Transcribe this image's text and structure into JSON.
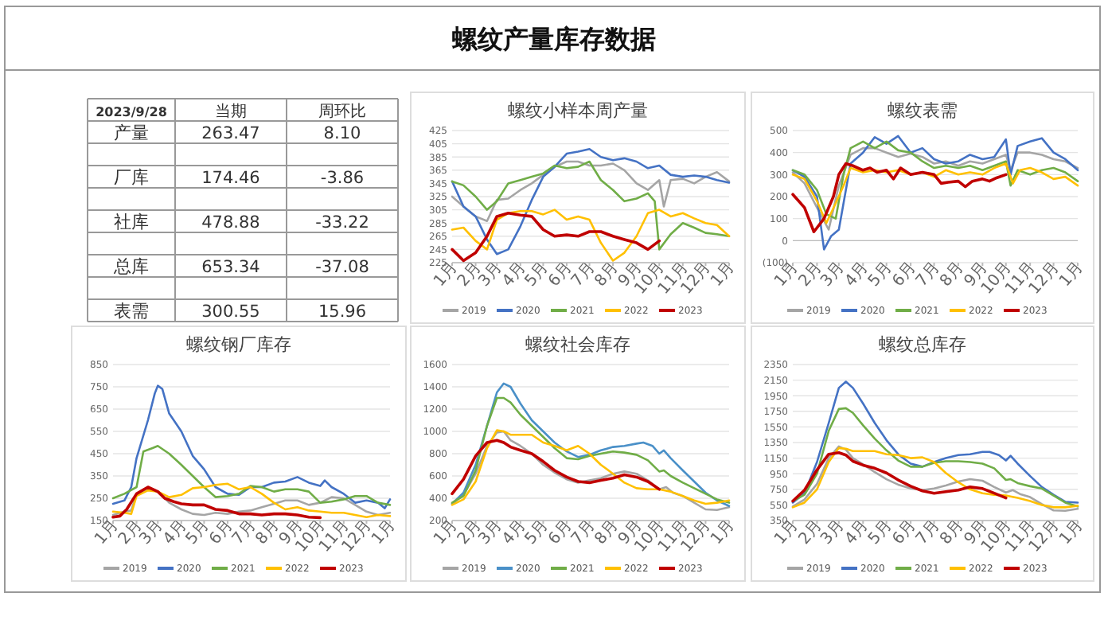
{
  "chart_data": [
    {
      "type": "other",
      "title": "螺纹产量库存数据",
      "subtitle": "2023/9/28",
      "categories": [
        "产量",
        "厂库",
        "社库",
        "总库",
        "表需"
      ],
      "series": [
        {
          "name": "当期",
          "values": [
            263.47,
            174.46,
            478.88,
            653.34,
            300.55
          ],
          "value_labels": [
            "263.47",
            "174.46",
            "478.88",
            "653.34",
            "300.55"
          ]
        },
        {
          "name": "周环比",
          "values": [
            8.1,
            -3.86,
            -33.22,
            -37.08,
            15.96
          ],
          "value_labels": [
            "8.10",
            "-3.86",
            "-33.22",
            "-37.08",
            "15.96"
          ]
        }
      ]
    },
    {
      "type": "line",
      "title": "螺纹小样本周产量",
      "xlim": [
        "2023-01-01",
        "2024-01-01"
      ],
      "xticks": [
        {
          "value": "2023-01-01",
          "label": "1月"
        },
        {
          "value": "2023-02-01",
          "label": "2月"
        },
        {
          "value": "2023-03-01",
          "label": "3月"
        },
        {
          "value": "2023-04-01",
          "label": "4月"
        },
        {
          "value": "2023-05-01",
          "label": "5月"
        },
        {
          "value": "2023-06-01",
          "label": "6月"
        },
        {
          "value": "2023-07-01",
          "label": "7月"
        },
        {
          "value": "2023-08-01",
          "label": "8月"
        },
        {
          "value": "2023-09-01",
          "label": "9月"
        },
        {
          "value": "2023-10-01",
          "label": "10月"
        },
        {
          "value": "2023-11-01",
          "label": "11月"
        },
        {
          "value": "2023-12-01",
          "label": "12月"
        },
        {
          "value": "2024-01-01",
          "label": "1月"
        }
      ],
      "ylim": [
        225,
        425
      ],
      "yticks": [
        225,
        245,
        265,
        285,
        305,
        325,
        345,
        365,
        385,
        405,
        425
      ],
      "grid": "y",
      "legend": "bottom",
      "series": [
        {
          "name": "2019",
          "color": "#a5a5a5",
          "x": [
            "2023-01-01",
            "2023-01-16",
            "2023-02-01",
            "2023-02-16",
            "2023-03-01",
            "2023-03-16",
            "2023-04-01",
            "2023-04-16",
            "2023-05-01",
            "2023-05-16",
            "2023-06-01",
            "2023-06-16",
            "2023-07-01",
            "2023-07-16",
            "2023-08-01",
            "2023-08-16",
            "2023-09-01",
            "2023-09-16",
            "2023-10-01",
            "2023-10-07",
            "2023-10-16",
            "2023-11-01",
            "2023-11-16",
            "2023-12-01",
            "2023-12-16",
            "2024-01-01"
          ],
          "values": [
            325,
            310,
            295,
            288,
            320,
            322,
            335,
            345,
            358,
            370,
            378,
            378,
            372,
            372,
            375,
            365,
            345,
            335,
            350,
            310,
            350,
            352,
            345,
            355,
            362,
            348
          ]
        },
        {
          "name": "2020",
          "color": "#4472c4",
          "x": [
            "2023-01-01",
            "2023-01-16",
            "2023-02-01",
            "2023-02-16",
            "2023-03-01",
            "2023-03-16",
            "2023-04-01",
            "2023-04-16",
            "2023-05-01",
            "2023-05-16",
            "2023-06-01",
            "2023-06-16",
            "2023-07-01",
            "2023-07-16",
            "2023-08-01",
            "2023-08-16",
            "2023-09-01",
            "2023-09-16",
            "2023-10-01",
            "2023-10-16",
            "2023-11-01",
            "2023-11-16",
            "2023-12-01",
            "2023-12-16",
            "2024-01-01"
          ],
          "values": [
            348,
            310,
            295,
            260,
            238,
            245,
            280,
            320,
            355,
            370,
            390,
            393,
            397,
            385,
            380,
            383,
            378,
            368,
            372,
            358,
            355,
            357,
            355,
            350,
            346
          ]
        },
        {
          "name": "2021",
          "color": "#70ad47",
          "x": [
            "2023-01-01",
            "2023-01-16",
            "2023-02-01",
            "2023-02-16",
            "2023-03-01",
            "2023-03-16",
            "2023-04-01",
            "2023-04-16",
            "2023-05-01",
            "2023-05-16",
            "2023-06-01",
            "2023-06-16",
            "2023-07-01",
            "2023-07-16",
            "2023-08-01",
            "2023-08-16",
            "2023-09-01",
            "2023-09-16",
            "2023-09-25",
            "2023-10-01",
            "2023-10-16",
            "2023-11-01",
            "2023-11-16",
            "2023-12-01",
            "2023-12-16",
            "2024-01-01"
          ],
          "values": [
            348,
            342,
            325,
            305,
            318,
            345,
            350,
            355,
            360,
            372,
            368,
            370,
            378,
            350,
            335,
            318,
            322,
            330,
            318,
            245,
            268,
            285,
            278,
            270,
            268,
            265
          ]
        },
        {
          "name": "2022",
          "color": "#ffc000",
          "x": [
            "2023-01-01",
            "2023-01-16",
            "2023-02-01",
            "2023-02-16",
            "2023-03-01",
            "2023-03-16",
            "2023-04-01",
            "2023-04-16",
            "2023-05-01",
            "2023-05-16",
            "2023-06-01",
            "2023-06-16",
            "2023-07-01",
            "2023-07-16",
            "2023-08-01",
            "2023-08-16",
            "2023-09-01",
            "2023-09-16",
            "2023-10-01",
            "2023-10-16",
            "2023-11-01",
            "2023-11-16",
            "2023-12-01",
            "2023-12-16",
            "2024-01-01"
          ],
          "values": [
            275,
            278,
            258,
            245,
            290,
            300,
            303,
            303,
            298,
            305,
            290,
            295,
            290,
            255,
            228,
            240,
            265,
            300,
            305,
            295,
            300,
            292,
            285,
            282,
            265
          ]
        },
        {
          "name": "2023",
          "color": "#c00000",
          "x": [
            "2023-01-01",
            "2023-01-16",
            "2023-02-01",
            "2023-02-16",
            "2023-03-01",
            "2023-03-16",
            "2023-04-01",
            "2023-04-16",
            "2023-05-01",
            "2023-05-16",
            "2023-06-01",
            "2023-06-16",
            "2023-07-01",
            "2023-07-16",
            "2023-08-01",
            "2023-08-16",
            "2023-09-01",
            "2023-09-16",
            "2023-10-01"
          ],
          "values": [
            245,
            228,
            240,
            265,
            295,
            300,
            297,
            295,
            275,
            265,
            267,
            265,
            272,
            272,
            265,
            260,
            255,
            245,
            258
          ]
        }
      ]
    },
    {
      "type": "line",
      "title": "螺纹表需",
      "xlim": [
        "2023-01-01",
        "2024-01-01"
      ],
      "xticks": [
        {
          "value": "2023-01-01",
          "label": "1月"
        },
        {
          "value": "2023-02-01",
          "label": "2月"
        },
        {
          "value": "2023-03-01",
          "label": "3月"
        },
        {
          "value": "2023-04-01",
          "label": "4月"
        },
        {
          "value": "2023-05-01",
          "label": "5月"
        },
        {
          "value": "2023-06-01",
          "label": "6月"
        },
        {
          "value": "2023-07-01",
          "label": "7月"
        },
        {
          "value": "2023-08-01",
          "label": "8月"
        },
        {
          "value": "2023-09-01",
          "label": "9月"
        },
        {
          "value": "2023-10-01",
          "label": "10月"
        },
        {
          "value": "2023-11-01",
          "label": "11月"
        },
        {
          "value": "2023-12-01",
          "label": "12月"
        },
        {
          "value": "2024-01-01",
          "label": "1月"
        }
      ],
      "ylim": [
        -100,
        500
      ],
      "yticks": [
        {
          "value": -100,
          "label": "(100)"
        },
        0,
        100,
        200,
        300,
        400,
        500
      ],
      "grid": "y",
      "legend": "bottom",
      "series": [
        {
          "name": "2019",
          "color": "#a5a5a5",
          "x": [
            "2023-01-01",
            "2023-01-16",
            "2023-02-01",
            "2023-02-16",
            "2023-03-01",
            "2023-03-16",
            "2023-04-01",
            "2023-04-16",
            "2023-05-01",
            "2023-05-16",
            "2023-06-01",
            "2023-06-16",
            "2023-07-01",
            "2023-07-16",
            "2023-08-01",
            "2023-08-16",
            "2023-09-01",
            "2023-09-16",
            "2023-10-01",
            "2023-10-07",
            "2023-10-16",
            "2023-11-01",
            "2023-11-16",
            "2023-12-01",
            "2023-12-16",
            "2024-01-01"
          ],
          "values": [
            310,
            260,
            150,
            50,
            250,
            390,
            420,
            420,
            400,
            380,
            395,
            380,
            350,
            360,
            340,
            360,
            350,
            370,
            390,
            320,
            400,
            400,
            390,
            370,
            360,
            330
          ]
        },
        {
          "name": "2020",
          "color": "#4472c4",
          "x": [
            "2023-01-01",
            "2023-01-16",
            "2023-02-01",
            "2023-02-10",
            "2023-02-19",
            "2023-03-01",
            "2023-03-16",
            "2023-04-01",
            "2023-04-16",
            "2023-05-01",
            "2023-05-16",
            "2023-06-01",
            "2023-06-16",
            "2023-07-01",
            "2023-07-16",
            "2023-08-01",
            "2023-08-16",
            "2023-09-01",
            "2023-09-16",
            "2023-10-01",
            "2023-10-07",
            "2023-10-16",
            "2023-11-01",
            "2023-11-16",
            "2023-12-01",
            "2023-12-16",
            "2024-01-01"
          ],
          "values": [
            320,
            290,
            200,
            -40,
            20,
            50,
            350,
            400,
            470,
            440,
            475,
            400,
            420,
            370,
            350,
            360,
            390,
            370,
            380,
            460,
            300,
            430,
            450,
            465,
            400,
            370,
            320
          ]
        },
        {
          "name": "2021",
          "color": "#70ad47",
          "x": [
            "2023-01-01",
            "2023-01-16",
            "2023-02-01",
            "2023-02-13",
            "2023-02-25",
            "2023-03-07",
            "2023-03-16",
            "2023-04-01",
            "2023-04-16",
            "2023-05-01",
            "2023-05-16",
            "2023-06-01",
            "2023-06-16",
            "2023-07-01",
            "2023-07-16",
            "2023-08-01",
            "2023-08-16",
            "2023-09-01",
            "2023-09-16",
            "2023-10-01",
            "2023-10-07",
            "2023-10-16",
            "2023-11-01",
            "2023-11-16",
            "2023-12-01",
            "2023-12-16",
            "2024-01-01"
          ],
          "values": [
            320,
            300,
            230,
            120,
            100,
            300,
            420,
            450,
            420,
            450,
            410,
            400,
            360,
            330,
            340,
            330,
            340,
            320,
            340,
            360,
            250,
            320,
            300,
            320,
            330,
            310,
            270
          ]
        },
        {
          "name": "2022",
          "color": "#ffc000",
          "x": [
            "2023-01-01",
            "2023-01-16",
            "2023-02-01",
            "2023-02-13",
            "2023-02-25",
            "2023-03-07",
            "2023-03-16",
            "2023-04-01",
            "2023-04-16",
            "2023-05-01",
            "2023-05-16",
            "2023-06-01",
            "2023-06-16",
            "2023-07-01",
            "2023-07-16",
            "2023-08-01",
            "2023-08-16",
            "2023-09-01",
            "2023-09-16",
            "2023-10-01",
            "2023-10-10",
            "2023-10-19",
            "2023-11-01",
            "2023-11-16",
            "2023-12-01",
            "2023-12-16",
            "2024-01-01"
          ],
          "values": [
            300,
            280,
            180,
            80,
            170,
            250,
            330,
            310,
            320,
            310,
            320,
            300,
            310,
            290,
            320,
            300,
            310,
            300,
            330,
            350,
            260,
            320,
            330,
            310,
            280,
            290,
            250
          ]
        },
        {
          "name": "2023",
          "color": "#c00000",
          "x": [
            "2023-01-01",
            "2023-01-16",
            "2023-01-28",
            "2023-02-10",
            "2023-02-22",
            "2023-03-01",
            "2023-03-10",
            "2023-03-19",
            "2023-04-01",
            "2023-04-10",
            "2023-04-19",
            "2023-05-01",
            "2023-05-10",
            "2023-05-19",
            "2023-06-01",
            "2023-06-16",
            "2023-07-01",
            "2023-07-10",
            "2023-07-19",
            "2023-08-01",
            "2023-08-10",
            "2023-08-19",
            "2023-09-01",
            "2023-09-10",
            "2023-09-19",
            "2023-10-01"
          ],
          "values": [
            210,
            150,
            40,
            100,
            200,
            300,
            350,
            340,
            320,
            330,
            310,
            320,
            280,
            330,
            300,
            310,
            300,
            260,
            265,
            270,
            245,
            270,
            280,
            270,
            285,
            300
          ]
        }
      ]
    },
    {
      "type": "line",
      "title": "螺纹钢厂库存",
      "xlim": [
        "2023-01-01",
        "2024-01-01"
      ],
      "xticks": [
        {
          "value": "2023-01-01",
          "label": "1月"
        },
        {
          "value": "2023-02-01",
          "label": "2月"
        },
        {
          "value": "2023-03-01",
          "label": "3月"
        },
        {
          "value": "2023-04-01",
          "label": "4月"
        },
        {
          "value": "2023-05-01",
          "label": "5月"
        },
        {
          "value": "2023-06-01",
          "label": "6月"
        },
        {
          "value": "2023-07-01",
          "label": "7月"
        },
        {
          "value": "2023-08-01",
          "label": "8月"
        },
        {
          "value": "2023-09-01",
          "label": "9月"
        },
        {
          "value": "2023-10-01",
          "label": "10月"
        },
        {
          "value": "2023-11-01",
          "label": "11月"
        },
        {
          "value": "2023-12-01",
          "label": "12月"
        },
        {
          "value": "2024-01-01",
          "label": "1月"
        }
      ],
      "ylim": [
        150,
        850
      ],
      "yticks": [
        150,
        250,
        350,
        450,
        550,
        650,
        750,
        850
      ],
      "grid": "y",
      "legend": "bottom",
      "series": [
        {
          "name": "2019",
          "color": "#a5a5a5",
          "x": [
            "2023-01-01",
            "2023-01-16",
            "2023-01-25",
            "2023-02-01",
            "2023-02-16",
            "2023-03-01",
            "2023-03-16",
            "2023-04-01",
            "2023-04-16",
            "2023-05-01",
            "2023-05-16",
            "2023-06-01",
            "2023-06-16",
            "2023-07-01",
            "2023-07-16",
            "2023-08-01",
            "2023-08-16",
            "2023-09-01",
            "2023-09-16",
            "2023-10-01",
            "2023-10-16",
            "2023-11-01",
            "2023-11-16",
            "2023-12-01",
            "2023-12-16",
            "2024-01-01"
          ],
          "values": [
            175,
            190,
            195,
            270,
            290,
            280,
            230,
            200,
            180,
            175,
            185,
            180,
            190,
            195,
            210,
            225,
            240,
            240,
            220,
            230,
            255,
            250,
            220,
            190,
            175,
            185
          ]
        },
        {
          "name": "2020",
          "color": "#4472c4",
          "x": [
            "2023-01-01",
            "2023-01-16",
            "2023-01-25",
            "2023-02-01",
            "2023-02-16",
            "2023-02-25",
            "2023-03-01",
            "2023-03-07",
            "2023-03-16",
            "2023-04-01",
            "2023-04-16",
            "2023-05-01",
            "2023-05-16",
            "2023-06-01",
            "2023-06-16",
            "2023-07-01",
            "2023-07-16",
            "2023-08-01",
            "2023-08-16",
            "2023-09-01",
            "2023-09-16",
            "2023-10-01",
            "2023-10-07",
            "2023-10-16",
            "2023-11-01",
            "2023-11-16",
            "2023-12-01",
            "2023-12-16",
            "2023-12-25",
            "2024-01-01"
          ],
          "values": [
            225,
            240,
            300,
            430,
            600,
            720,
            755,
            740,
            630,
            550,
            440,
            380,
            300,
            270,
            265,
            300,
            300,
            320,
            325,
            345,
            320,
            305,
            330,
            300,
            270,
            230,
            240,
            230,
            205,
            245
          ]
        },
        {
          "name": "2021",
          "color": "#70ad47",
          "x": [
            "2023-01-01",
            "2023-01-16",
            "2023-02-01",
            "2023-02-10",
            "2023-02-22",
            "2023-03-01",
            "2023-03-16",
            "2023-04-01",
            "2023-04-16",
            "2023-05-01",
            "2023-05-16",
            "2023-06-01",
            "2023-06-16",
            "2023-07-01",
            "2023-07-16",
            "2023-08-01",
            "2023-08-16",
            "2023-09-01",
            "2023-09-16",
            "2023-10-01",
            "2023-10-16",
            "2023-11-01",
            "2023-11-16",
            "2023-12-01",
            "2023-12-16",
            "2024-01-01"
          ],
          "values": [
            250,
            270,
            300,
            460,
            475,
            485,
            450,
            400,
            350,
            300,
            255,
            260,
            270,
            305,
            300,
            280,
            290,
            290,
            280,
            230,
            235,
            245,
            260,
            260,
            230,
            220
          ]
        },
        {
          "name": "2022",
          "color": "#ffc000",
          "x": [
            "2023-01-01",
            "2023-01-16",
            "2023-01-25",
            "2023-02-01",
            "2023-02-16",
            "2023-03-01",
            "2023-03-16",
            "2023-04-01",
            "2023-04-16",
            "2023-05-01",
            "2023-05-16",
            "2023-06-01",
            "2023-06-16",
            "2023-07-01",
            "2023-07-16",
            "2023-08-01",
            "2023-08-16",
            "2023-09-01",
            "2023-09-16",
            "2023-10-01",
            "2023-10-16",
            "2023-11-01",
            "2023-11-16",
            "2023-12-01",
            "2023-12-16",
            "2024-01-01"
          ],
          "values": [
            190,
            185,
            180,
            260,
            285,
            280,
            255,
            265,
            295,
            300,
            310,
            315,
            290,
            300,
            270,
            230,
            200,
            210,
            195,
            190,
            185,
            185,
            175,
            165,
            175,
            170
          ]
        },
        {
          "name": "2023",
          "color": "#c00000",
          "x": [
            "2023-01-01",
            "2023-01-10",
            "2023-01-19",
            "2023-02-01",
            "2023-02-16",
            "2023-03-01",
            "2023-03-10",
            "2023-03-22",
            "2023-04-01",
            "2023-04-16",
            "2023-05-01",
            "2023-05-16",
            "2023-06-01",
            "2023-06-16",
            "2023-07-01",
            "2023-07-16",
            "2023-08-01",
            "2023-08-16",
            "2023-09-01",
            "2023-09-16",
            "2023-10-01"
          ],
          "values": [
            165,
            170,
            200,
            270,
            300,
            280,
            250,
            235,
            225,
            220,
            220,
            200,
            195,
            180,
            180,
            175,
            180,
            180,
            175,
            165,
            163
          ]
        }
      ]
    },
    {
      "type": "line",
      "title": "螺纹社会库存",
      "xlim": [
        "2023-01-01",
        "2024-01-01"
      ],
      "xticks": [
        {
          "value": "2023-01-01",
          "label": "1月"
        },
        {
          "value": "2023-02-01",
          "label": "2月"
        },
        {
          "value": "2023-03-01",
          "label": "3月"
        },
        {
          "value": "2023-04-01",
          "label": "4月"
        },
        {
          "value": "2023-05-01",
          "label": "5月"
        },
        {
          "value": "2023-06-01",
          "label": "6月"
        },
        {
          "value": "2023-07-01",
          "label": "7月"
        },
        {
          "value": "2023-08-01",
          "label": "8月"
        },
        {
          "value": "2023-09-01",
          "label": "9月"
        },
        {
          "value": "2023-10-01",
          "label": "10月"
        },
        {
          "value": "2023-11-01",
          "label": "11月"
        },
        {
          "value": "2023-12-01",
          "label": "12月"
        },
        {
          "value": "2024-01-01",
          "label": "1月"
        }
      ],
      "ylim": [
        200,
        1600
      ],
      "yticks": [
        200,
        400,
        600,
        800,
        1000,
        1200,
        1400,
        1600
      ],
      "grid": "y",
      "legend": "bottom",
      "series": [
        {
          "name": "2019",
          "color": "#a5a5a5",
          "x": [
            "2023-01-01",
            "2023-01-16",
            "2023-02-01",
            "2023-02-16",
            "2023-03-01",
            "2023-03-10",
            "2023-03-19",
            "2023-04-01",
            "2023-04-16",
            "2023-05-01",
            "2023-05-16",
            "2023-06-01",
            "2023-06-16",
            "2023-07-01",
            "2023-07-16",
            "2023-08-01",
            "2023-08-16",
            "2023-09-01",
            "2023-09-16",
            "2023-10-01",
            "2023-10-10",
            "2023-10-19",
            "2023-11-01",
            "2023-11-16",
            "2023-12-01",
            "2023-12-16",
            "2024-01-01"
          ],
          "values": [
            350,
            430,
            620,
            870,
            990,
            1000,
            920,
            870,
            800,
            700,
            630,
            570,
            540,
            560,
            580,
            620,
            640,
            620,
            560,
            480,
            500,
            450,
            420,
            360,
            300,
            295,
            320
          ]
        },
        {
          "name": "2020",
          "color": "#4a90c8",
          "x": [
            "2023-01-01",
            "2023-01-16",
            "2023-02-01",
            "2023-02-16",
            "2023-03-01",
            "2023-03-10",
            "2023-03-19",
            "2023-04-01",
            "2023-04-16",
            "2023-05-01",
            "2023-05-16",
            "2023-06-01",
            "2023-06-16",
            "2023-07-01",
            "2023-07-16",
            "2023-08-01",
            "2023-08-16",
            "2023-09-01",
            "2023-09-10",
            "2023-09-22",
            "2023-10-01",
            "2023-10-07",
            "2023-10-16",
            "2023-11-01",
            "2023-11-16",
            "2023-12-01",
            "2023-12-16",
            "2024-01-01"
          ],
          "values": [
            350,
            450,
            700,
            1050,
            1350,
            1430,
            1400,
            1250,
            1100,
            1000,
            900,
            820,
            770,
            790,
            830,
            860,
            870,
            890,
            900,
            870,
            800,
            830,
            760,
            650,
            550,
            450,
            380,
            330
          ]
        },
        {
          "name": "2021",
          "color": "#70ad47",
          "x": [
            "2023-01-01",
            "2023-01-16",
            "2023-02-01",
            "2023-02-16",
            "2023-03-01",
            "2023-03-10",
            "2023-03-19",
            "2023-04-01",
            "2023-04-16",
            "2023-05-01",
            "2023-05-16",
            "2023-06-01",
            "2023-06-16",
            "2023-07-01",
            "2023-07-16",
            "2023-08-01",
            "2023-08-16",
            "2023-09-01",
            "2023-09-16",
            "2023-10-01",
            "2023-10-07",
            "2023-10-16",
            "2023-11-01",
            "2023-11-16",
            "2023-12-01",
            "2023-12-16",
            "2024-01-01"
          ],
          "values": [
            360,
            420,
            650,
            1050,
            1300,
            1300,
            1260,
            1150,
            1050,
            950,
            850,
            760,
            750,
            780,
            800,
            820,
            810,
            790,
            740,
            640,
            650,
            600,
            540,
            490,
            440,
            390,
            360
          ]
        },
        {
          "name": "2022",
          "color": "#ffc000",
          "x": [
            "2023-01-01",
            "2023-01-16",
            "2023-02-01",
            "2023-02-16",
            "2023-03-01",
            "2023-03-10",
            "2023-03-19",
            "2023-04-01",
            "2023-04-16",
            "2023-05-01",
            "2023-05-16",
            "2023-06-01",
            "2023-06-16",
            "2023-07-01",
            "2023-07-16",
            "2023-08-01",
            "2023-08-16",
            "2023-09-01",
            "2023-09-16",
            "2023-10-01",
            "2023-10-16",
            "2023-11-01",
            "2023-11-16",
            "2023-12-01",
            "2023-12-16",
            "2024-01-01"
          ],
          "values": [
            340,
            390,
            550,
            850,
            1010,
            1000,
            970,
            970,
            970,
            900,
            870,
            830,
            870,
            800,
            700,
            620,
            540,
            490,
            480,
            480,
            460,
            420,
            380,
            350,
            360,
            380
          ]
        },
        {
          "name": "2023",
          "color": "#c00000",
          "x": [
            "2023-01-01",
            "2023-01-16",
            "2023-02-01",
            "2023-02-16",
            "2023-03-01",
            "2023-03-10",
            "2023-03-19",
            "2023-04-01",
            "2023-04-16",
            "2023-05-01",
            "2023-05-16",
            "2023-06-01",
            "2023-06-16",
            "2023-07-01",
            "2023-07-16",
            "2023-08-01",
            "2023-08-16",
            "2023-09-01",
            "2023-09-16",
            "2023-10-01"
          ],
          "values": [
            440,
            570,
            780,
            900,
            920,
            900,
            860,
            830,
            800,
            730,
            650,
            590,
            550,
            540,
            560,
            580,
            610,
            590,
            550,
            480
          ]
        }
      ]
    },
    {
      "type": "line",
      "title": "螺纹总库存",
      "xlim": [
        "2023-01-01",
        "2024-01-01"
      ],
      "xticks": [
        {
          "value": "2023-01-01",
          "label": "1月"
        },
        {
          "value": "2023-02-01",
          "label": "2月"
        },
        {
          "value": "2023-03-01",
          "label": "3月"
        },
        {
          "value": "2023-04-01",
          "label": "4月"
        },
        {
          "value": "2023-05-01",
          "label": "5月"
        },
        {
          "value": "2023-06-01",
          "label": "6月"
        },
        {
          "value": "2023-07-01",
          "label": "7月"
        },
        {
          "value": "2023-08-01",
          "label": "8月"
        },
        {
          "value": "2023-09-01",
          "label": "9月"
        },
        {
          "value": "2023-10-01",
          "label": "10月"
        },
        {
          "value": "2023-11-01",
          "label": "11月"
        },
        {
          "value": "2023-12-01",
          "label": "12月"
        },
        {
          "value": "2024-01-01",
          "label": "1月"
        }
      ],
      "ylim": [
        350,
        2350
      ],
      "yticks": [
        350,
        550,
        750,
        950,
        1150,
        1350,
        1550,
        1750,
        1950,
        2150,
        2350
      ],
      "grid": "y",
      "legend": "bottom",
      "series": [
        {
          "name": "2019",
          "color": "#a5a5a5",
          "x": [
            "2023-01-01",
            "2023-01-16",
            "2023-02-01",
            "2023-02-16",
            "2023-03-01",
            "2023-03-10",
            "2023-03-19",
            "2023-04-01",
            "2023-04-16",
            "2023-05-01",
            "2023-05-16",
            "2023-06-01",
            "2023-06-16",
            "2023-07-01",
            "2023-07-16",
            "2023-08-01",
            "2023-08-16",
            "2023-09-01",
            "2023-09-16",
            "2023-10-01",
            "2023-10-10",
            "2023-10-19",
            "2023-11-01",
            "2023-11-16",
            "2023-12-01",
            "2023-12-16",
            "2024-01-01"
          ],
          "values": [
            530,
            620,
            820,
            1150,
            1300,
            1260,
            1150,
            1070,
            970,
            880,
            810,
            760,
            740,
            760,
            800,
            850,
            880,
            860,
            780,
            710,
            740,
            690,
            650,
            560,
            480,
            475,
            500
          ]
        },
        {
          "name": "2020",
          "color": "#4472c4",
          "x": [
            "2023-01-01",
            "2023-01-16",
            "2023-02-01",
            "2023-02-16",
            "2023-03-01",
            "2023-03-10",
            "2023-03-19",
            "2023-04-01",
            "2023-04-16",
            "2023-05-01",
            "2023-05-16",
            "2023-06-01",
            "2023-06-16",
            "2023-07-01",
            "2023-07-16",
            "2023-08-01",
            "2023-08-16",
            "2023-09-01",
            "2023-09-10",
            "2023-09-22",
            "2023-10-01",
            "2023-10-07",
            "2023-10-16",
            "2023-11-01",
            "2023-11-16",
            "2023-12-01",
            "2023-12-16",
            "2024-01-01"
          ],
          "values": [
            580,
            700,
            1100,
            1600,
            2050,
            2130,
            2050,
            1850,
            1600,
            1380,
            1200,
            1080,
            1040,
            1100,
            1150,
            1190,
            1200,
            1230,
            1230,
            1190,
            1120,
            1180,
            1080,
            920,
            780,
            680,
            590,
            580
          ]
        },
        {
          "name": "2021",
          "color": "#70ad47",
          "x": [
            "2023-01-01",
            "2023-01-16",
            "2023-02-01",
            "2023-02-16",
            "2023-03-01",
            "2023-03-10",
            "2023-03-19",
            "2023-04-01",
            "2023-04-16",
            "2023-05-01",
            "2023-05-16",
            "2023-06-01",
            "2023-06-16",
            "2023-07-01",
            "2023-07-16",
            "2023-08-01",
            "2023-08-16",
            "2023-09-01",
            "2023-09-16",
            "2023-10-01",
            "2023-10-07",
            "2023-10-16",
            "2023-11-01",
            "2023-11-16",
            "2023-12-01",
            "2023-12-16",
            "2024-01-01"
          ],
          "values": [
            600,
            680,
            950,
            1500,
            1780,
            1790,
            1730,
            1570,
            1400,
            1250,
            1120,
            1040,
            1040,
            1090,
            1110,
            1110,
            1100,
            1080,
            1020,
            870,
            880,
            830,
            790,
            760,
            670,
            580,
            530
          ]
        },
        {
          "name": "2022",
          "color": "#ffc000",
          "x": [
            "2023-01-01",
            "2023-01-16",
            "2023-02-01",
            "2023-02-16",
            "2023-03-01",
            "2023-03-10",
            "2023-03-19",
            "2023-04-01",
            "2023-04-16",
            "2023-05-01",
            "2023-05-16",
            "2023-06-01",
            "2023-06-16",
            "2023-07-01",
            "2023-07-16",
            "2023-08-01",
            "2023-08-16",
            "2023-09-01",
            "2023-09-16",
            "2023-10-01",
            "2023-10-16",
            "2023-11-01",
            "2023-11-16",
            "2023-12-01",
            "2023-12-16",
            "2024-01-01"
          ],
          "values": [
            520,
            580,
            750,
            1100,
            1280,
            1270,
            1240,
            1240,
            1240,
            1200,
            1190,
            1150,
            1160,
            1100,
            960,
            840,
            750,
            700,
            680,
            670,
            640,
            600,
            550,
            520,
            520,
            540
          ]
        },
        {
          "name": "2023",
          "color": "#c00000",
          "x": [
            "2023-01-01",
            "2023-01-16",
            "2023-02-01",
            "2023-02-16",
            "2023-03-01",
            "2023-03-10",
            "2023-03-19",
            "2023-04-01",
            "2023-04-16",
            "2023-05-01",
            "2023-05-16",
            "2023-06-01",
            "2023-06-16",
            "2023-07-01",
            "2023-07-16",
            "2023-08-01",
            "2023-08-16",
            "2023-09-01",
            "2023-09-16",
            "2023-10-01"
          ],
          "values": [
            600,
            740,
            1000,
            1200,
            1220,
            1190,
            1110,
            1060,
            1020,
            960,
            870,
            790,
            730,
            700,
            720,
            740,
            780,
            760,
            700,
            640
          ]
        }
      ]
    }
  ]
}
